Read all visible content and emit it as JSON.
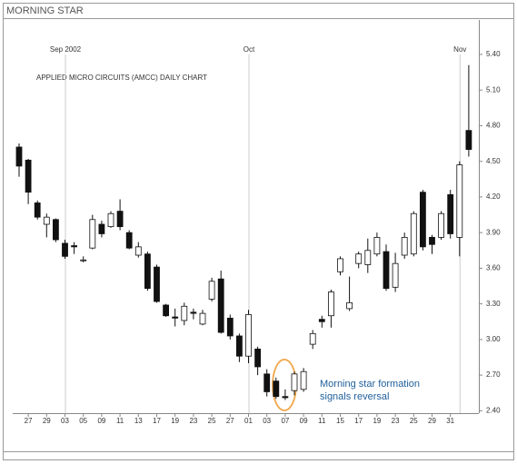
{
  "chart_data": {
    "type": "candlestick",
    "title": "MORNING STAR",
    "subtitle": "APPLIED MICRO CIRCUITS (AMCC) DAILY CHART",
    "annotation": [
      "Morning star formation",
      "signals reversal"
    ],
    "month_labels": [
      {
        "label": "Sep 2002",
        "at": 5
      },
      {
        "label": "Oct",
        "at": 25
      },
      {
        "label": "Nov",
        "at": 48
      }
    ],
    "categories": [
      null,
      "27",
      null,
      "29",
      null,
      "03",
      null,
      "05",
      null,
      "09",
      null,
      "11",
      null,
      "13",
      null,
      "17",
      null,
      "19",
      null,
      "23",
      null,
      "25",
      null,
      "27",
      null,
      "01",
      null,
      "03",
      null,
      "07",
      null,
      "09",
      null,
      "11",
      null,
      "15",
      null,
      "17",
      null,
      "19",
      null,
      "23",
      null,
      "25",
      null,
      "29",
      null,
      "31",
      null,
      null
    ],
    "open": [
      4.62,
      4.51,
      4.15,
      3.97,
      4.01,
      3.81,
      3.79,
      3.67,
      3.77,
      3.97,
      3.95,
      4.08,
      3.9,
      3.71,
      3.72,
      3.61,
      3.29,
      3.19,
      3.16,
      3.23,
      3.13,
      3.34,
      3.51,
      3.18,
      3.03,
      2.86,
      2.92,
      2.71,
      2.65,
      2.52,
      2.57,
      2.58,
      2.96,
      3.17,
      3.2,
      3.57,
      3.26,
      3.64,
      3.63,
      3.72,
      3.74,
      3.44,
      3.71,
      3.72,
      4.24,
      3.86,
      3.86,
      4.22,
      3.86,
      4.76
    ],
    "high": [
      4.65,
      4.52,
      4.17,
      4.06,
      4.02,
      3.84,
      3.82,
      3.7,
      4.05,
      4.0,
      4.08,
      4.18,
      3.92,
      3.82,
      3.74,
      3.63,
      3.3,
      3.26,
      3.31,
      3.26,
      3.25,
      3.52,
      3.58,
      3.21,
      3.05,
      3.25,
      2.94,
      2.75,
      2.68,
      2.58,
      2.73,
      2.76,
      3.08,
      3.2,
      3.42,
      3.7,
      3.53,
      3.74,
      3.85,
      3.9,
      3.8,
      3.73,
      3.9,
      4.08,
      4.26,
      3.88,
      4.08,
      4.26,
      4.5,
      5.31
    ],
    "low": [
      4.37,
      4.14,
      4.01,
      3.86,
      3.82,
      3.68,
      3.72,
      3.65,
      3.76,
      3.86,
      3.94,
      3.92,
      3.76,
      3.69,
      3.41,
      3.31,
      3.19,
      3.11,
      3.12,
      3.17,
      3.12,
      3.32,
      3.05,
      3.0,
      2.81,
      2.8,
      2.7,
      2.52,
      2.5,
      2.49,
      2.53,
      2.56,
      2.92,
      3.1,
      3.1,
      3.54,
      3.24,
      3.6,
      3.56,
      3.7,
      3.41,
      3.4,
      3.68,
      3.7,
      3.75,
      3.72,
      3.84,
      3.85,
      3.7,
      4.54
    ],
    "close": [
      4.46,
      4.24,
      4.03,
      4.03,
      3.84,
      3.7,
      3.78,
      3.67,
      4.01,
      3.89,
      4.06,
      3.95,
      3.77,
      3.78,
      3.43,
      3.32,
      3.2,
      3.18,
      3.28,
      3.22,
      3.22,
      3.49,
      3.06,
      3.03,
      2.86,
      3.21,
      2.77,
      2.56,
      2.52,
      2.51,
      2.71,
      2.73,
      3.05,
      3.15,
      3.4,
      3.68,
      3.31,
      3.72,
      3.75,
      3.86,
      3.43,
      3.64,
      3.86,
      4.06,
      3.78,
      3.8,
      4.06,
      3.89,
      4.47,
      4.6
    ],
    "up_color": "#ffffff",
    "down_color": "#111111",
    "ylim": [
      2.38,
      5.69
    ],
    "yticks": [
      {
        "value": 5.4,
        "label": "5.40"
      },
      {
        "value": 5.1,
        "label": "5.10"
      },
      {
        "value": 4.8,
        "label": "4.80"
      },
      {
        "value": 4.5,
        "label": "4.50"
      },
      {
        "value": 4.2,
        "label": "4.20"
      },
      {
        "value": 3.9,
        "label": "3.90"
      },
      {
        "value": 3.6,
        "label": "3.60"
      },
      {
        "value": 3.3,
        "label": "3.30"
      },
      {
        "value": 3.0,
        "label": "3.00"
      },
      {
        "value": 2.7,
        "label": "2.70"
      },
      {
        "value": 2.4,
        "label": "2.40"
      }
    ]
  }
}
